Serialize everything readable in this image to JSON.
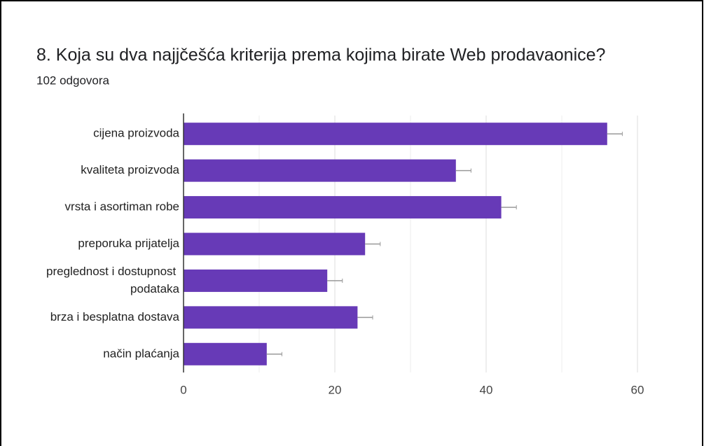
{
  "chart_data": {
    "type": "bar",
    "orientation": "horizontal",
    "title": "8. Koja su dva najjčešća kriterija prema kojima birate Web prodavaonice?",
    "subtitle": "102 odgovora",
    "categories": [
      "cijena proizvoda",
      "kvaliteta proizvoda",
      "vrsta i asortiman robe",
      "preporuka prijatelja",
      "preglednost i dostupnost podataka",
      "brza i besplatna dostava",
      "način plaćanja"
    ],
    "values": [
      56,
      36,
      42,
      24,
      19,
      23,
      11
    ],
    "errors": [
      2,
      2,
      2,
      2,
      2,
      2,
      2
    ],
    "color": "#673ab7",
    "error_color": "#999999",
    "xlim": [
      0,
      60
    ],
    "xticks": [
      0,
      20,
      40,
      60
    ],
    "minor_xticks": [
      10,
      30,
      50
    ],
    "grid": true
  }
}
